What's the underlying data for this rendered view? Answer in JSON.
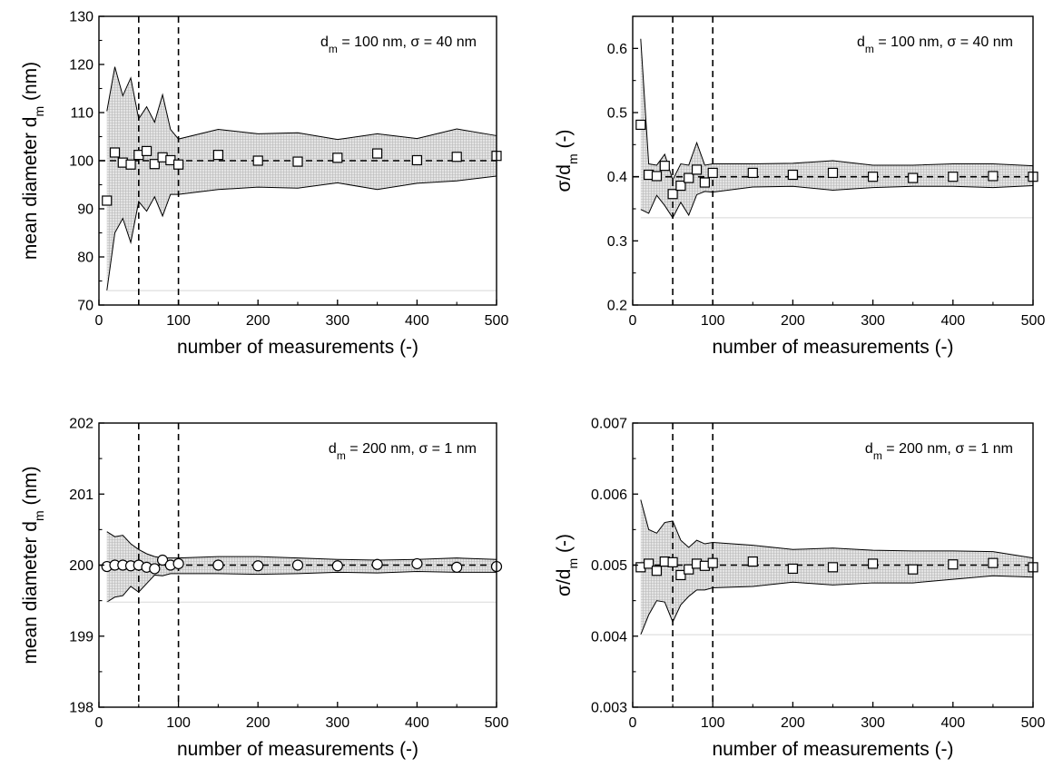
{
  "chart_data": [
    {
      "type": "scatter",
      "annotation": {
        "pre": "d",
        "sub": "m",
        "post": " = 100 nm, σ = 40 nm"
      },
      "xlabel": "number of measurements (-)",
      "ylabel": {
        "pre": "mean diameter d",
        "sub": "m",
        "post": " (nm)"
      },
      "xlim": [
        0,
        500
      ],
      "ylim": [
        70,
        130
      ],
      "xticks": [
        "0",
        "100",
        "200",
        "300",
        "400",
        "500"
      ],
      "yticks": [
        "70",
        "80",
        "90",
        "100",
        "110",
        "120",
        "130"
      ],
      "reference_value": 100,
      "vertical_dashed_lines": [
        50,
        100
      ],
      "marker": "square",
      "points": {
        "x": [
          10,
          20,
          30,
          40,
          50,
          60,
          70,
          80,
          90,
          100,
          150,
          200,
          250,
          300,
          350,
          400,
          450,
          500
        ],
        "y": [
          91.7,
          101.7,
          99.6,
          99.2,
          101.2,
          102.0,
          99.3,
          100.7,
          100.1,
          99.2,
          101.2,
          100.0,
          99.8,
          100.6,
          101.5,
          100.1,
          100.8,
          101.0
        ]
      },
      "band": {
        "x": [
          10,
          20,
          30,
          40,
          50,
          60,
          70,
          80,
          90,
          100,
          150,
          200,
          250,
          300,
          350,
          400,
          450,
          500
        ],
        "upper": [
          110.3,
          119.5,
          113.5,
          117.2,
          108.7,
          111.2,
          108.0,
          113.7,
          106.5,
          104.5,
          106.5,
          105.6,
          105.8,
          104.4,
          105.6,
          104.6,
          106.6,
          105.2
        ],
        "lower": [
          73.0,
          85.0,
          88.0,
          83.0,
          91.5,
          89.5,
          92.5,
          88.5,
          93.0,
          93.0,
          94.0,
          94.5,
          94.3,
          95.4,
          94.0,
          95.3,
          95.8,
          96.8
        ]
      }
    },
    {
      "type": "scatter",
      "annotation": {
        "pre": "d",
        "sub": "m",
        "post": " = 100 nm, σ = 40 nm"
      },
      "xlabel": "number of measurements (-)",
      "ylabel": {
        "pre": "σ/d",
        "sub": "m",
        "post": " (-)"
      },
      "xlim": [
        0,
        500
      ],
      "ylim": [
        0.2,
        0.65
      ],
      "xticks": [
        "0",
        "100",
        "200",
        "300",
        "400",
        "500"
      ],
      "yticks": [
        "0.2",
        "0.3",
        "0.4",
        "0.5",
        "0.6"
      ],
      "reference_value": 0.4,
      "vertical_dashed_lines": [
        50,
        100
      ],
      "marker": "square",
      "points": {
        "x": [
          10,
          20,
          30,
          40,
          50,
          60,
          70,
          80,
          90,
          100,
          150,
          200,
          250,
          300,
          350,
          400,
          450,
          500
        ],
        "y": [
          0.481,
          0.403,
          0.401,
          0.417,
          0.373,
          0.386,
          0.398,
          0.411,
          0.391,
          0.406,
          0.406,
          0.403,
          0.406,
          0.4,
          0.398,
          0.4,
          0.401,
          0.4
        ]
      },
      "band": {
        "x": [
          10,
          20,
          30,
          40,
          50,
          60,
          70,
          80,
          90,
          100,
          150,
          200,
          250,
          300,
          350,
          400,
          450,
          500
        ],
        "upper": [
          0.615,
          0.42,
          0.418,
          0.435,
          0.395,
          0.42,
          0.418,
          0.453,
          0.418,
          0.42,
          0.42,
          0.421,
          0.425,
          0.418,
          0.418,
          0.42,
          0.42,
          0.417
        ],
        "lower": [
          0.349,
          0.343,
          0.371,
          0.355,
          0.336,
          0.36,
          0.34,
          0.372,
          0.377,
          0.376,
          0.384,
          0.385,
          0.379,
          0.383,
          0.385,
          0.385,
          0.383,
          0.386
        ]
      }
    },
    {
      "type": "scatter",
      "annotation": {
        "pre": "d",
        "sub": "m",
        "post": " = 200 nm, σ = 1 nm"
      },
      "xlabel": "number of measurements (-)",
      "ylabel": {
        "pre": "mean diameter d",
        "sub": "m",
        "post": " (nm)"
      },
      "xlim": [
        0,
        500
      ],
      "ylim": [
        198,
        202
      ],
      "xticks": [
        "0",
        "100",
        "200",
        "300",
        "400",
        "500"
      ],
      "yticks": [
        "198",
        "199",
        "200",
        "201",
        "202"
      ],
      "reference_value": 200,
      "vertical_dashed_lines": [
        50,
        100
      ],
      "marker": "circle",
      "points": {
        "x": [
          10,
          20,
          30,
          40,
          50,
          60,
          70,
          80,
          90,
          100,
          150,
          200,
          250,
          300,
          350,
          400,
          450,
          500
        ],
        "y": [
          199.98,
          200.0,
          200.0,
          199.99,
          200.0,
          199.97,
          199.95,
          200.07,
          200.0,
          200.02,
          200.0,
          199.99,
          200.0,
          199.99,
          200.01,
          200.02,
          199.97,
          199.98
        ]
      },
      "band": {
        "x": [
          10,
          20,
          30,
          40,
          50,
          60,
          70,
          80,
          90,
          100,
          150,
          200,
          250,
          300,
          350,
          400,
          450,
          500
        ],
        "upper": [
          200.47,
          200.4,
          200.42,
          200.3,
          200.22,
          200.16,
          200.12,
          200.1,
          200.1,
          200.1,
          200.12,
          200.12,
          200.1,
          200.08,
          200.07,
          200.08,
          200.1,
          200.08
        ],
        "lower": [
          199.48,
          199.55,
          199.57,
          199.7,
          199.62,
          199.74,
          199.86,
          199.85,
          199.88,
          199.88,
          199.88,
          199.87,
          199.88,
          199.9,
          199.89,
          199.91,
          199.9,
          199.9
        ]
      }
    },
    {
      "type": "scatter",
      "annotation": {
        "pre": "d",
        "sub": "m",
        "post": " = 200 nm, σ = 1 nm"
      },
      "xlabel": "number of measurements (-)",
      "ylabel": {
        "pre": "σ/d",
        "sub": "m",
        "post": " (-)"
      },
      "xlim": [
        0,
        500
      ],
      "ylim": [
        0.003,
        0.007
      ],
      "xticks": [
        "0",
        "100",
        "200",
        "300",
        "400",
        "500"
      ],
      "yticks": [
        "0.003",
        "0.004",
        "0.005",
        "0.006",
        "0.007"
      ],
      "reference_value": 0.005,
      "vertical_dashed_lines": [
        50,
        100
      ],
      "marker": "square",
      "points": {
        "x": [
          10,
          20,
          30,
          40,
          50,
          60,
          70,
          80,
          90,
          100,
          150,
          200,
          250,
          300,
          350,
          400,
          450,
          500
        ],
        "y": [
          0.00497,
          0.00502,
          0.00492,
          0.00505,
          0.00504,
          0.00486,
          0.00494,
          0.00502,
          0.00499,
          0.00503,
          0.00505,
          0.00495,
          0.00497,
          0.00502,
          0.00494,
          0.00501,
          0.00503,
          0.00497
        ]
      },
      "band": {
        "x": [
          10,
          20,
          30,
          40,
          50,
          60,
          70,
          80,
          90,
          100,
          150,
          200,
          250,
          300,
          350,
          400,
          450,
          500
        ],
        "upper": [
          0.00592,
          0.0055,
          0.00545,
          0.0056,
          0.00562,
          0.00535,
          0.00525,
          0.00535,
          0.0053,
          0.00532,
          0.00528,
          0.00522,
          0.00524,
          0.00521,
          0.0052,
          0.0052,
          0.00519,
          0.0051
        ],
        "lower": [
          0.00402,
          0.0043,
          0.0045,
          0.00448,
          0.0042,
          0.00444,
          0.00456,
          0.00465,
          0.00465,
          0.00468,
          0.0047,
          0.00476,
          0.00472,
          0.00475,
          0.00475,
          0.0048,
          0.00485,
          0.00483
        ]
      }
    }
  ]
}
